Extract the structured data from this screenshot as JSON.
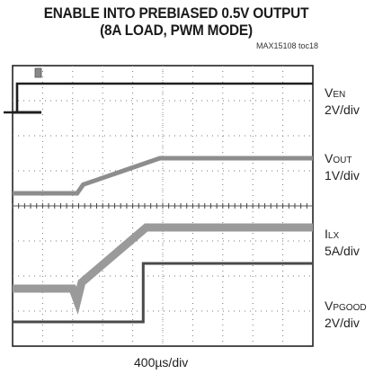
{
  "chart_data": {
    "type": "line",
    "title_line1": "ENABLE INTO PREBIASED 0.5V OUTPUT",
    "title_line2": "(8A LOAD, PWM MODE)",
    "figure_id": "MAX15108 toc18",
    "x_scale": "400µs/div",
    "divisions": {
      "x": 10,
      "y": 8
    },
    "channels": [
      {
        "name_main": "V",
        "name_sub": "EN",
        "scale": "2V/div",
        "color": "#1f1f1f",
        "level": "low→high",
        "points": [
          [
            -0.3,
            0.0
          ],
          [
            0.15,
            0.0
          ],
          [
            0.15,
            1.0
          ],
          [
            10,
            1.0
          ]
        ]
      },
      {
        "name_main": "V",
        "name_sub": "OUT",
        "scale": "1V/div",
        "color": "#8d8d8d",
        "points": [
          [
            0,
            0
          ],
          [
            2.15,
            0
          ],
          [
            2.35,
            0.25
          ],
          [
            4.9,
            1.0
          ],
          [
            10,
            1.0
          ]
        ]
      },
      {
        "name_main": "I",
        "name_sub": "LX",
        "scale": "5A/div",
        "color": "#9a9a9a",
        "points": [
          [
            0,
            0
          ],
          [
            2.0,
            0
          ],
          [
            2.15,
            -0.2
          ],
          [
            2.3,
            0.1
          ],
          [
            4.45,
            1.0
          ],
          [
            10,
            1.0
          ]
        ]
      },
      {
        "name_main": "V",
        "name_sub": "PGOOD",
        "scale": "2V/div",
        "color": "#4a4a4a",
        "points": [
          [
            0,
            0
          ],
          [
            4.35,
            0
          ],
          [
            4.35,
            1.0
          ],
          [
            10,
            1.0
          ]
        ]
      }
    ]
  }
}
